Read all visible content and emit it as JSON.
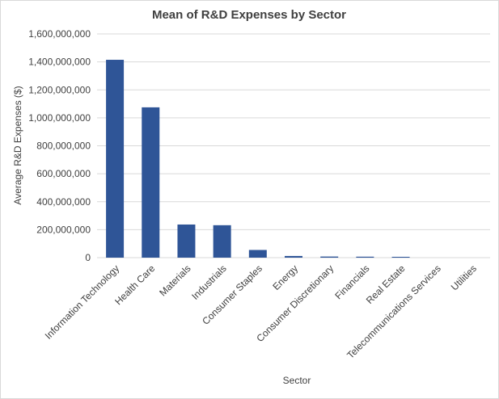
{
  "chart_data": {
    "type": "bar",
    "title": "Mean of R&D Expenses by Sector",
    "xlabel": "Sector",
    "ylabel": "Average R&D Expenses ($)",
    "categories": [
      "Information Technology",
      "Health Care",
      "Materials",
      "Industrials",
      "Consumer Staples",
      "Energy",
      "Consumer Discretionary",
      "Financials",
      "Real Estate",
      "Telecommunications Services",
      "Utilities"
    ],
    "values": [
      1415000000,
      1075000000,
      237000000,
      232000000,
      55000000,
      12000000,
      8000000,
      7000000,
      6000000,
      0,
      0
    ],
    "ylim": [
      0,
      1600000000
    ],
    "yticks": [
      0,
      200000000,
      400000000,
      600000000,
      800000000,
      1000000000,
      1200000000,
      1400000000,
      1600000000
    ],
    "ytick_labels": [
      "0",
      "200,000,000",
      "400,000,000",
      "600,000,000",
      "800,000,000",
      "1,000,000,000",
      "1,200,000,000",
      "1,400,000,000",
      "1,600,000,000"
    ],
    "grid": true,
    "legend": "none",
    "colors": {
      "bar": "#2f5597",
      "grid": "#d9d9d9",
      "text": "#404040"
    }
  }
}
